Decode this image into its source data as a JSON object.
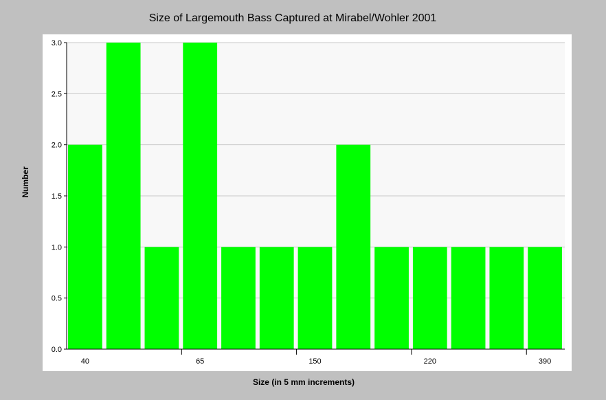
{
  "chart_data": {
    "type": "bar",
    "title": "Size of Largemouth Bass Captured at Mirabel/Wohler 2001",
    "xlabel": "Size (in 5 mm increments)",
    "ylabel": "Number",
    "categories": [
      "40",
      "",
      "",
      "65",
      "",
      "",
      "150",
      "",
      "",
      "220",
      "",
      "",
      "390"
    ],
    "values": [
      2,
      3,
      1,
      3,
      1,
      1,
      1,
      2,
      1,
      1,
      1,
      1,
      1
    ],
    "ylim": [
      0,
      3
    ],
    "yticks": [
      "0.0",
      "0.5",
      "1.0",
      "1.5",
      "2.0",
      "2.5",
      "3.0"
    ],
    "grid": true,
    "legend": "none",
    "bar_color": "#00ff00",
    "plot_background": "#f8f8f8",
    "page_background": "#c0c0c0"
  }
}
